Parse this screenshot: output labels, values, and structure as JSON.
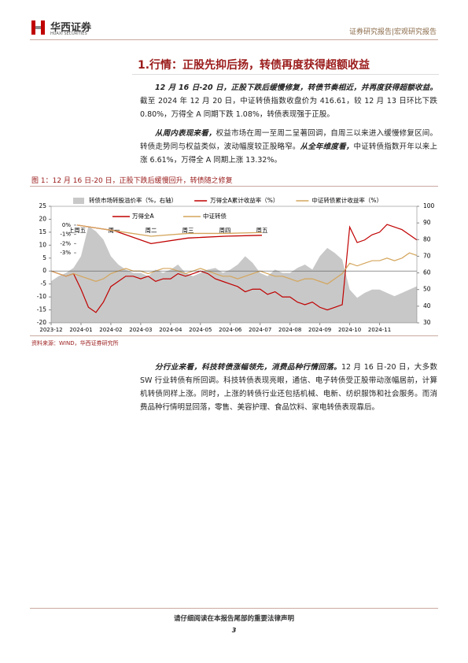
{
  "header": {
    "logo_cn": "华西证券",
    "logo_en": "HUAXI SECURITIES",
    "right": "证券研究报告|宏观研究报告"
  },
  "section_title": "1.行情：正股先抑后扬，转债再度获得超额收益",
  "paragraphs_top": [
    [
      {
        "bold": "12 月 16 日-20 日，正股下跌后缓慢修复，转债节奏相近，并再度获得超额收益。"
      },
      {
        "text": "截至 2024 年 12 月 20 日，中证转债指数收盘价为 416.61，较 12 月 13 日环比下跌 0.80%，万得全 A 同期下跌 1.08%，转债表现强于正股。"
      }
    ],
    [
      {
        "bold": "从周内表现来看，"
      },
      {
        "text": "权益市场在周一至周二呈著回调，自周三以来进入缓慢修复区间。转债走势同与权益类似，波动幅度较正股略窄。"
      },
      {
        "bold": "从全年维度看，"
      },
      {
        "text": "中证转债指数开年以来上涨 6.61%，万得全 A 同期上涨 13.32%。"
      }
    ]
  ],
  "figure_caption": "图 1：12 月 16 日-20 日，正股下跌后缓慢回升，转债随之修复",
  "chart_data": {
    "type": "line",
    "x": [
      "2023-12",
      null,
      null,
      null,
      "2024-01",
      null,
      null,
      null,
      "2024-02",
      null,
      null,
      null,
      "2024-03",
      null,
      null,
      null,
      "2024-04",
      null,
      null,
      null,
      "2024-05",
      null,
      null,
      null,
      "2024-06",
      null,
      null,
      null,
      "2024-07",
      null,
      null,
      null,
      "2024-08",
      null,
      null,
      null,
      "2024-09",
      null,
      null,
      null,
      "2024-10",
      null,
      null,
      null,
      "2024-11",
      null,
      null,
      null,
      null,
      null
    ],
    "ylim": [
      -20,
      25
    ],
    "yticks": [
      -20,
      -15,
      -10,
      -5,
      0,
      5,
      10,
      15,
      20,
      25
    ],
    "y2lim": [
      30,
      100
    ],
    "y2ticks": [
      30,
      40,
      50,
      60,
      70,
      80,
      90,
      100
    ],
    "series": [
      {
        "name": "转债市场转股溢价率（%，右轴）",
        "color": "#c8c8c8",
        "axis": "y2",
        "style": "area",
        "values": [
          55,
          58,
          60,
          63,
          70,
          88,
          85,
          80,
          70,
          65,
          62,
          60,
          60,
          58,
          62,
          60,
          62,
          65,
          60,
          58,
          60,
          62,
          63,
          60,
          62,
          65,
          70,
          66,
          60,
          58,
          62,
          60,
          60,
          63,
          65,
          62,
          70,
          75,
          72,
          68,
          50,
          45,
          48,
          50,
          50,
          48,
          46,
          48,
          50,
          52
        ]
      },
      {
        "name": "万得全A累计收益率（%）",
        "color": "#c00000",
        "style": "line",
        "values": [
          0,
          -1,
          -2,
          -1,
          -7,
          -14,
          -16,
          -12,
          -6,
          -4,
          -2,
          -2,
          -3,
          -2,
          -4,
          -3,
          -3,
          -1,
          -2,
          -1,
          0,
          -1,
          -3,
          -4,
          -5,
          -6,
          -8,
          -7,
          -7,
          -9,
          -8,
          -10,
          -10,
          -12,
          -13,
          -12,
          -14,
          -15,
          -14,
          -13,
          17,
          11,
          12,
          14,
          15,
          18,
          17,
          16,
          14,
          12
        ]
      },
      {
        "name": "中证转债累计收益率（%）",
        "color": "#d4a55c",
        "style": "line",
        "values": [
          0,
          -1,
          -2,
          -1,
          -2,
          -3,
          -4,
          -3,
          -1,
          0,
          1,
          0,
          0,
          -1,
          0,
          1,
          1,
          0,
          -1,
          0,
          1,
          0,
          -1,
          -2,
          -2,
          -3,
          -2,
          -1,
          0,
          -1,
          -2,
          -2,
          -3,
          -4,
          -3,
          -3,
          -4,
          -5,
          -3,
          -1,
          3,
          2,
          3,
          4,
          4,
          5,
          4,
          5,
          7,
          6
        ]
      }
    ],
    "inset": {
      "type": "line",
      "categories": [
        "上周五",
        "周一",
        "周二",
        "周三",
        "周四",
        "周五"
      ],
      "ylim": [
        -3.5,
        0.5
      ],
      "yticks": [
        {
          "value": 0,
          "label": "0%"
        },
        {
          "value": -1,
          "label": "-1%"
        },
        {
          "value": -2,
          "label": "-2%"
        },
        {
          "value": -3,
          "label": "-3%"
        }
      ],
      "series": [
        {
          "name": "万得全A",
          "color": "#c00000",
          "values": [
            0,
            -0.6,
            -2,
            -1.4,
            -1.2,
            -1.1
          ]
        },
        {
          "name": "中证转债",
          "color": "#d4a55c",
          "values": [
            0,
            -0.6,
            -1.2,
            -0.9,
            -0.9,
            -0.8
          ]
        }
      ]
    }
  },
  "source": "资料来源：WIND，华西证券研究所",
  "paragraphs_bottom": [
    [
      {
        "bold": "分行业来看，科技转债涨幅领先，消费品种行情回落。"
      },
      {
        "text": "12 月 16 日-20 日，大多数 SW 行业转债有所回调。科技转债表现亮眼，通信、电子转债受正股带动涨幅居前，计算机转债同样上涨。同时，上涨的转债行业还包括机械、电新、纺织服饰和社会服务。而消费品种行情明显回落，零售、美容护理、食品饮料、家电转债表现靠后。"
      }
    ]
  ],
  "footer": {
    "notice": "请仔细阅读在本报告尾部的重要法律声明",
    "page": "3"
  }
}
